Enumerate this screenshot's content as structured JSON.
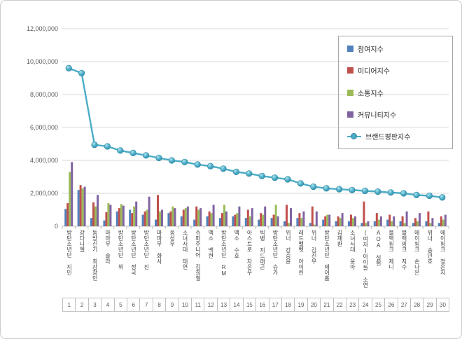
{
  "chart_data": {
    "type": "bar+line",
    "title": "",
    "grid": true,
    "legend_position": "top-right",
    "ylim": [
      0,
      12000000
    ],
    "ytick_step": 2000000,
    "ytick_labels": [
      "0",
      "2,000,000",
      "4,000,000",
      "6,000,000",
      "8,000,000",
      "10,000,000",
      "12,000,000"
    ],
    "categories": [
      "방탄소년단 지민",
      "강다니엘",
      "동방신기 최강창민",
      "마마무 솔라",
      "방탄소년단 뷔",
      "방탄소년단 정국",
      "방탄소년단 진",
      "마마무 화사",
      "옹성우",
      "소녀시대 태연",
      "슈퍼주니어 김희철",
      "엑소 백현",
      "방탄소년단 RM",
      "엑소 수호",
      "아스트로 차은우",
      "빅뱅 지드래곤",
      "방탄소년단 슈가",
      "위너 강승윤",
      "레드벨벳 아이린",
      "위너 김진우",
      "방탄소년단 제이홉",
      "김재환",
      "소녀시대 윤아",
      "(여자)아이들 소연",
      "AOA 설현",
      "블랙핑크 제니",
      "블랙핑크 지수",
      "에이핑크 손나은",
      "위너 송민호",
      "에이핑크 정은지"
    ],
    "ranks": [
      "1",
      "2",
      "3",
      "4",
      "5",
      "6",
      "7",
      "8",
      "9",
      "10",
      "11",
      "12",
      "13",
      "14",
      "15",
      "16",
      "17",
      "18",
      "19",
      "20",
      "21",
      "22",
      "23",
      "24",
      "25",
      "26",
      "27",
      "28",
      "29",
      "30"
    ],
    "series": [
      {
        "name": "참여지수",
        "color": "#4F81BD",
        "values": [
          1050000,
          2200000,
          500000,
          350000,
          900000,
          1000000,
          700000,
          400000,
          800000,
          600000,
          400000,
          600000,
          500000,
          600000,
          500000,
          400000,
          500000,
          300000,
          500000,
          200000,
          400000,
          300000,
          300000,
          200000,
          300000,
          400000,
          300000,
          200000,
          300000,
          200000
        ]
      },
      {
        "name": "미디어지수",
        "color": "#C0504D",
        "values": [
          1400000,
          2500000,
          1450000,
          850000,
          1100000,
          800000,
          900000,
          1900000,
          900000,
          1000000,
          1200000,
          900000,
          800000,
          700000,
          1000000,
          800000,
          700000,
          1300000,
          800000,
          1200000,
          600000,
          600000,
          700000,
          1500000,
          800000,
          700000,
          600000,
          500000,
          900000,
          600000
        ]
      },
      {
        "name": "소통지수",
        "color": "#9BBB59",
        "values": [
          3300000,
          2300000,
          1200000,
          1400000,
          1350000,
          1200000,
          1000000,
          900000,
          1200000,
          1100000,
          1000000,
          800000,
          1300000,
          800000,
          600000,
          700000,
          1300000,
          200000,
          500000,
          100000,
          700000,
          500000,
          500000,
          200000,
          400000,
          300000,
          200000,
          300000,
          200000,
          400000
        ]
      },
      {
        "name": "커뮤니티지수",
        "color": "#8064A2",
        "values": [
          3900000,
          2400000,
          1900000,
          1300000,
          1250000,
          1500000,
          1800000,
          1000000,
          1100000,
          1200000,
          1100000,
          1300000,
          900000,
          1200000,
          1100000,
          1200000,
          600000,
          1100000,
          900000,
          900000,
          700000,
          800000,
          600000,
          300000,
          600000,
          600000,
          900000,
          800000,
          500000,
          700000
        ]
      }
    ],
    "line_series": {
      "name": "브랜드평판지수",
      "color": "#4BACC6",
      "marker_edge": "#31859C",
      "values": [
        9600000,
        9300000,
        4950000,
        4850000,
        4600000,
        4450000,
        4300000,
        4150000,
        4000000,
        3900000,
        3750000,
        3650000,
        3500000,
        3300000,
        3200000,
        3050000,
        2950000,
        2850000,
        2600000,
        2400000,
        2300000,
        2250000,
        2200000,
        2150000,
        2100000,
        2050000,
        2000000,
        1900000,
        1850000,
        1750000
      ]
    }
  }
}
